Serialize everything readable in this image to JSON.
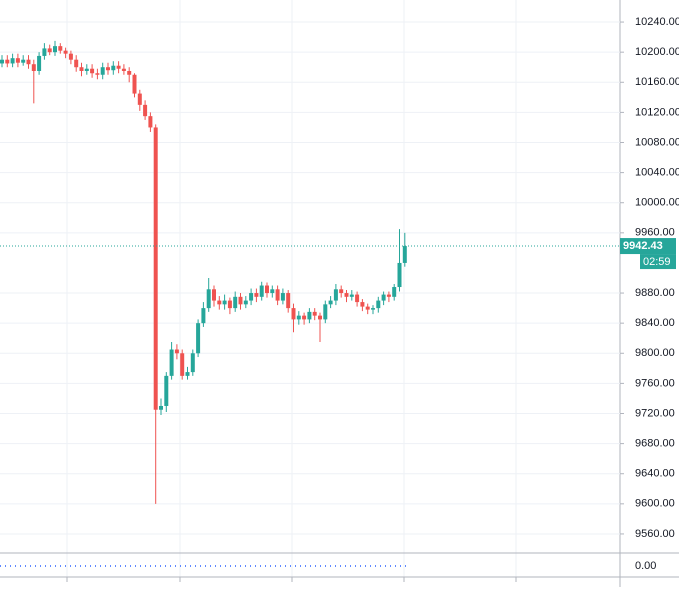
{
  "chart_data": {
    "type": "candlestick",
    "up_color": "#26a69a",
    "down_color": "#ef5350",
    "grid": true,
    "ylim": [
      9540,
      10260
    ],
    "yticks": [
      {
        "value": 9560,
        "label": "9560.00"
      },
      {
        "value": 9600,
        "label": "9600.00"
      },
      {
        "value": 9640,
        "label": "9640.00"
      },
      {
        "value": 9680,
        "label": "9680.00"
      },
      {
        "value": 9720,
        "label": "9720.00"
      },
      {
        "value": 9760,
        "label": "9760.00"
      },
      {
        "value": 9800,
        "label": "9800.00"
      },
      {
        "value": 9840,
        "label": "9840.00"
      },
      {
        "value": 9880,
        "label": "9880.00"
      },
      {
        "value": 9960,
        "label": "9960.00"
      },
      {
        "value": 10000,
        "label": "10000.00"
      },
      {
        "value": 10040,
        "label": "10040.00"
      },
      {
        "value": 10080,
        "label": "10080.00"
      },
      {
        "value": 10120,
        "label": "10120.00"
      },
      {
        "value": 10160,
        "label": "10160.00"
      },
      {
        "value": 10200,
        "label": "10200.00"
      },
      {
        "value": 10240,
        "label": "10240.00"
      }
    ],
    "open": [
      10185,
      10190,
      10185,
      10192,
      10186,
      10190,
      10184,
      10175,
      10195,
      10205,
      10200,
      10208,
      10202,
      10198,
      10190,
      10180,
      10175,
      10178,
      10172,
      10170,
      10180,
      10176,
      10182,
      10178,
      10175,
      10170,
      10145,
      10130,
      10115,
      10100,
      9725,
      9730,
      9770,
      9805,
      9800,
      9770,
      9775,
      9800,
      9840,
      9860,
      9885,
      9870,
      9865,
      9870,
      9860,
      9875,
      9865,
      9870,
      9880,
      9875,
      9890,
      9880,
      9885,
      9870,
      9880,
      9860,
      9845,
      9850,
      9845,
      9855,
      9850,
      9845,
      9865,
      9870,
      9885,
      9880,
      9875,
      9878,
      9868,
      9862,
      9858,
      9860,
      9870,
      9878,
      9875,
      9888,
      9920
    ],
    "high": [
      10196,
      10196,
      10198,
      10198,
      10196,
      10196,
      10190,
      10200,
      10212,
      10210,
      10215,
      10212,
      10206,
      10202,
      10196,
      10186,
      10184,
      10184,
      10178,
      10186,
      10186,
      10188,
      10188,
      10184,
      10180,
      10172,
      10150,
      10136,
      10120,
      10104,
      9740,
      9775,
      9815,
      9812,
      9805,
      9782,
      9805,
      9845,
      9868,
      9900,
      9890,
      9876,
      9878,
      9874,
      9882,
      9880,
      9876,
      9886,
      9886,
      9895,
      9894,
      9890,
      9890,
      9886,
      9884,
      9866,
      9856,
      9854,
      9860,
      9860,
      9854,
      9870,
      9876,
      9892,
      9890,
      9884,
      9884,
      9882,
      9872,
      9866,
      9864,
      9875,
      9882,
      9882,
      9892,
      9965,
      9960
    ],
    "low": [
      10180,
      10180,
      10180,
      10180,
      10182,
      10178,
      10132,
      10170,
      10190,
      10196,
      10195,
      10198,
      10192,
      10184,
      10174,
      10168,
      10170,
      10166,
      10164,
      10164,
      10170,
      10170,
      10172,
      10170,
      10160,
      10140,
      10122,
      10110,
      10094,
      9600,
      9718,
      9722,
      9765,
      9792,
      9765,
      9765,
      9770,
      9795,
      9835,
      9855,
      9862,
      9858,
      9858,
      9852,
      9855,
      9858,
      9860,
      9864,
      9868,
      9870,
      9874,
      9874,
      9864,
      9865,
      9854,
      9828,
      9838,
      9838,
      9840,
      9844,
      9815,
      9840,
      9860,
      9864,
      9874,
      9868,
      9870,
      9862,
      9856,
      9852,
      9852,
      9854,
      9864,
      9868,
      9870,
      9882,
      9915
    ],
    "close": [
      10190,
      10185,
      10192,
      10186,
      10190,
      10184,
      10175,
      10195,
      10205,
      10200,
      10208,
      10202,
      10198,
      10190,
      10180,
      10175,
      10178,
      10172,
      10170,
      10180,
      10176,
      10182,
      10178,
      10175,
      10170,
      10145,
      10130,
      10115,
      10100,
      9725,
      9730,
      9770,
      9805,
      9800,
      9770,
      9775,
      9800,
      9840,
      9860,
      9885,
      9870,
      9865,
      9870,
      9860,
      9875,
      9865,
      9870,
      9880,
      9875,
      9890,
      9880,
      9885,
      9870,
      9880,
      9860,
      9845,
      9850,
      9845,
      9855,
      9850,
      9845,
      9865,
      9870,
      9885,
      9880,
      9875,
      9878,
      9868,
      9862,
      9858,
      9860,
      9870,
      9878,
      9875,
      9888,
      9920,
      9942.43
    ],
    "last_price": {
      "value": 9942.43,
      "label": "9942.43"
    },
    "countdown": "02:59",
    "indicator_ylim": [
      -1,
      1
    ],
    "indicator_yticks": [
      {
        "value": 0,
        "label": "0.00"
      }
    ]
  }
}
